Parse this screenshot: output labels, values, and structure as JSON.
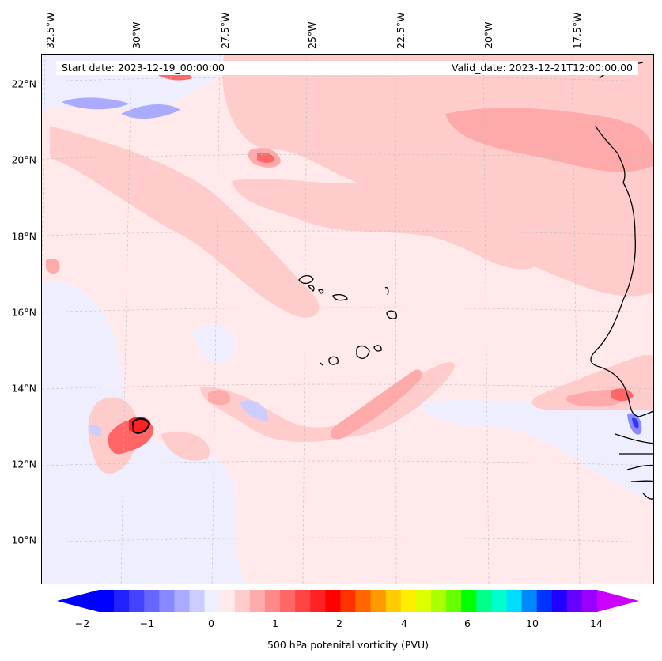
{
  "header": {
    "start_date": "Start date: 2023-12-19_00:00:00",
    "valid_date": "Valid_date: 2023-12-21T12:00:00.00"
  },
  "map": {
    "region": "Eastern tropical Atlantic, Cape Verde Islands and West African coast",
    "background_color": "#ffe9ea",
    "coastline_color": "#000000",
    "gridline_color": "#bdbdbd"
  },
  "longitude_labels": [
    "32.5°W",
    "30°W",
    "27.5°W",
    "25°W",
    "22.5°W",
    "20°W",
    "17.5°W"
  ],
  "latitude_labels": [
    "22°N",
    "20°N",
    "18°N",
    "16°N",
    "14°N",
    "12°N",
    "10°N"
  ],
  "colorbar": {
    "label": "500 hPa potenital vorticity (PVU)",
    "tick_labels": [
      "−2",
      "−1",
      "0",
      "1",
      "2",
      "4",
      "6",
      "10",
      "14"
    ],
    "colors": [
      "#0000ff",
      "#2222ff",
      "#4444ff",
      "#6666ff",
      "#8888ff",
      "#aaaaff",
      "#ccccff",
      "#eeeeff",
      "#ffe9ea",
      "#ffcccc",
      "#ffaaaa",
      "#ff8888",
      "#ff6666",
      "#ff4444",
      "#ff2222",
      "#ff0000",
      "#ff3300",
      "#ff6600",
      "#ff9900",
      "#ffcc00",
      "#ffee00",
      "#ddff00",
      "#aaff00",
      "#66ff00",
      "#00ff00",
      "#00ff88",
      "#00ffcc",
      "#00ddff",
      "#0088ff",
      "#0033ff",
      "#2200ff",
      "#6600ff",
      "#9900ff"
    ],
    "extend_low_color": "#0000ff",
    "extend_high_color": "#cc00ff"
  }
}
